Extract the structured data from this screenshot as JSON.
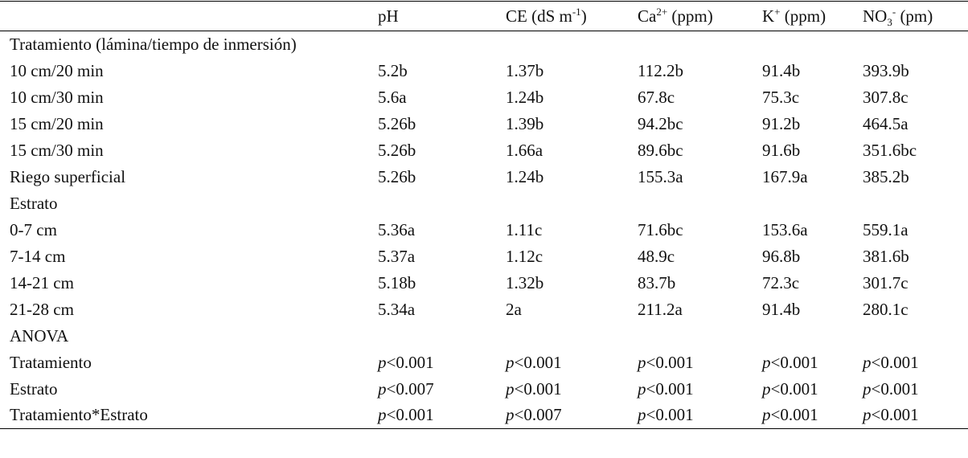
{
  "table": {
    "header": [
      [
        {
          "text": "pH"
        }
      ],
      [
        {
          "text": "CE (dS m"
        },
        {
          "sup": "-1"
        },
        {
          "text": ")"
        }
      ],
      [
        {
          "text": "Ca"
        },
        {
          "sup": "2+"
        },
        {
          "text": " (ppm)"
        }
      ],
      [
        {
          "text": "K"
        },
        {
          "sup": "+"
        },
        {
          "text": " (ppm)"
        }
      ],
      [
        {
          "text": "NO"
        },
        {
          "sub": "3"
        },
        {
          "sup": "-"
        },
        {
          "text": " (pm)"
        }
      ]
    ],
    "rows": [
      [
        "Tratamiento (lámina/tiempo de inmersión)"
      ],
      [
        "10 cm/20 min",
        "5.2b",
        "1.37b",
        "112.2b",
        "91.4b",
        "393.9b"
      ],
      [
        "10 cm/30 min",
        "5.6a",
        "1.24b",
        "67.8c",
        "75.3c",
        "307.8c"
      ],
      [
        "15 cm/20 min",
        "5.26b",
        "1.39b",
        "94.2bc",
        "91.2b",
        "464.5a"
      ],
      [
        "15 cm/30 min",
        "5.26b",
        "1.66a",
        "89.6bc",
        "91.6b",
        "351.6bc"
      ],
      [
        "Riego superficial",
        "5.26b",
        "1.24b",
        "155.3a",
        "167.9a",
        "385.2b"
      ],
      [
        "Estrato"
      ],
      [
        "0-7 cm",
        "5.36a",
        "1.11c",
        "71.6bc",
        "153.6a",
        "559.1a"
      ],
      [
        "7-14 cm",
        "5.37a",
        "1.12c",
        "48.9c",
        "96.8b",
        "381.6b"
      ],
      [
        "14-21 cm",
        "5.18b",
        "1.32b",
        "83.7b",
        "72.3c",
        "301.7c"
      ],
      [
        "21-28 cm",
        "5.34a",
        "2a",
        "211.2a",
        "91.4b",
        "280.1c"
      ],
      [
        "ANOVA"
      ],
      [
        "Tratamiento",
        {
          "italic": "p",
          "text": "<0.001"
        },
        {
          "italic": "p",
          "text": "<0.001"
        },
        {
          "italic": "p",
          "text": "<0.001"
        },
        {
          "italic": "p",
          "text": "<0.001"
        },
        {
          "italic": "p",
          "text": "<0.001"
        }
      ],
      [
        "Estrato",
        {
          "italic": "p",
          "text": "<0.007"
        },
        {
          "italic": "p",
          "text": "<0.001"
        },
        {
          "italic": "p",
          "text": "<0.001"
        },
        {
          "italic": "p",
          "text": "<0.001"
        },
        {
          "italic": "p",
          "text": "<0.001"
        }
      ],
      [
        "Tratamiento*Estrato",
        {
          "italic": "p",
          "text": "<0.001"
        },
        {
          "italic": "p",
          "text": "<0.007"
        },
        {
          "italic": "p",
          "text": "<0.001"
        },
        {
          "italic": "p",
          "text": "<0.001"
        },
        {
          "italic": "p",
          "text": "<0.001"
        }
      ]
    ]
  }
}
